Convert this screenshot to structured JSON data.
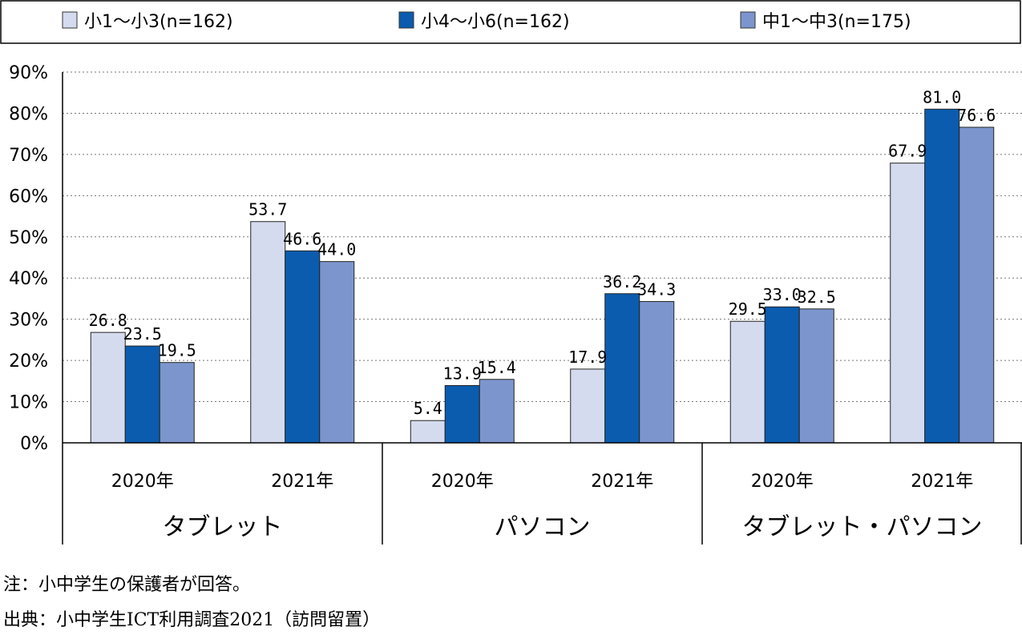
{
  "chart_data": {
    "type": "bar",
    "ylim": [
      0,
      90
    ],
    "y_ticks": [
      "0%",
      "10%",
      "20%",
      "30%",
      "40%",
      "50%",
      "60%",
      "70%",
      "80%",
      "90%"
    ],
    "grid": "horizontal dotted",
    "legend_position": "top",
    "groups": [
      {
        "label": "タブレット",
        "categories": [
          "2020年",
          "2021年"
        ]
      },
      {
        "label": "パソコン",
        "categories": [
          "2020年",
          "2021年"
        ]
      },
      {
        "label": "タブレット・パソコン",
        "categories": [
          "2020年",
          "2021年"
        ]
      }
    ],
    "categories": [
      "2020年",
      "2021年",
      "2020年",
      "2021年",
      "2020年",
      "2021年"
    ],
    "series": [
      {
        "name": "小1～小3(n=162)",
        "color": "#d5dbee",
        "values": [
          26.8,
          53.7,
          5.4,
          17.9,
          29.5,
          67.9
        ]
      },
      {
        "name": "小4～小6(n=162)",
        "color": "#0b5caf",
        "values": [
          23.5,
          46.6,
          13.9,
          36.2,
          33.0,
          81.0
        ]
      },
      {
        "name": "中1～中3(n=175)",
        "color": "#7c96cd",
        "values": [
          19.5,
          44.0,
          15.4,
          34.3,
          32.5,
          76.6
        ]
      }
    ]
  },
  "notes": {
    "note": "注：小中学生の保護者が回答。",
    "source": "出典：小中学生ICT利用調査2021（訪問留置）"
  }
}
